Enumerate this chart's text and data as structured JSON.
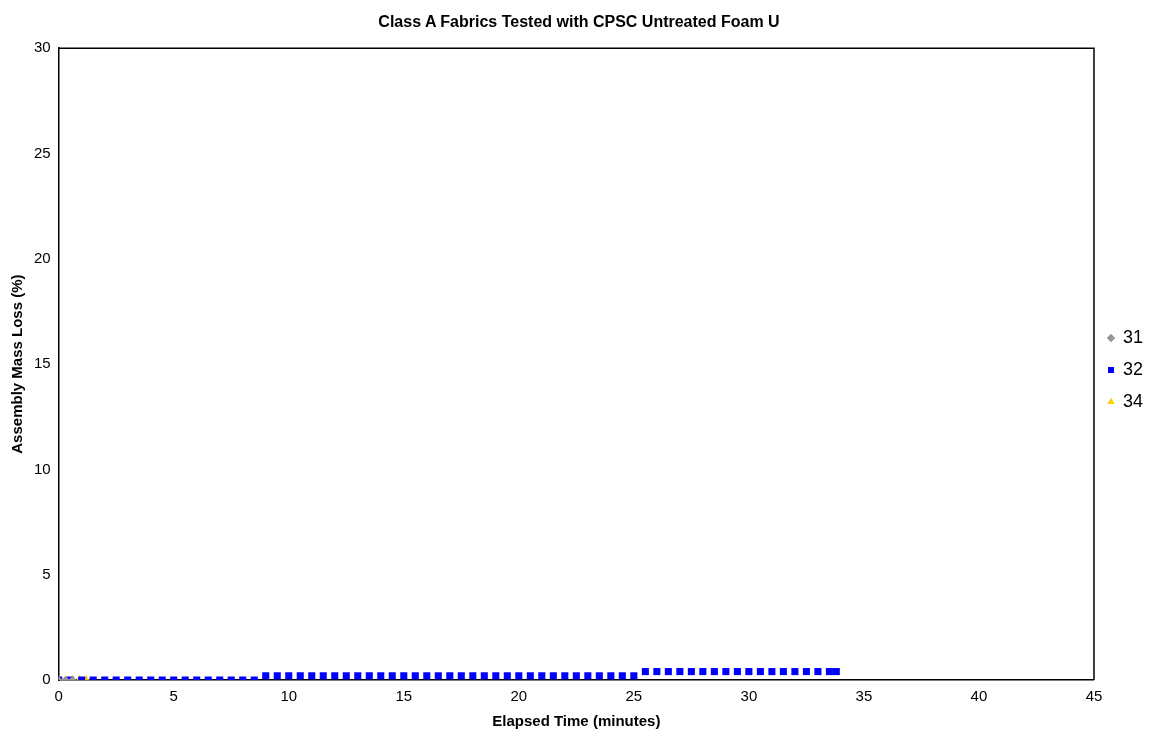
{
  "chart_data": {
    "type": "scatter",
    "title": "Class A Fabrics Tested with CPSC Untreated Foam U",
    "xlabel": "Elapsed Time (minutes)",
    "ylabel": "Assembly Mass Loss (%)",
    "xlim": [
      0,
      45
    ],
    "xticks": [
      0,
      5,
      10,
      15,
      20,
      25,
      30,
      35,
      40,
      45
    ],
    "ylim": [
      0,
      30
    ],
    "yticks": [
      0,
      5,
      10,
      15,
      20,
      25,
      30
    ],
    "grid": false,
    "legend": "right",
    "series": [
      {
        "name": "31",
        "color": "#969696",
        "marker": "diamond",
        "x": [
          0,
          0.3,
          0.6
        ],
        "values": [
          0,
          0,
          0
        ]
      },
      {
        "name": "32",
        "color": "#0000ff",
        "marker": "square",
        "x": [
          0,
          0.5,
          1,
          1.5,
          2,
          2.5,
          3,
          3.5,
          4,
          4.5,
          5,
          5.5,
          6,
          6.5,
          7,
          7.5,
          8,
          8.5,
          9,
          9.5,
          10,
          10.5,
          11,
          11.5,
          12,
          12.5,
          13,
          13.5,
          14,
          14.5,
          15,
          15.5,
          16,
          16.5,
          17,
          17.5,
          18,
          18.5,
          19,
          19.5,
          20,
          20.5,
          21,
          21.5,
          22,
          22.5,
          23,
          23.5,
          24,
          24.5,
          25,
          25.5,
          26,
          26.5,
          27,
          27.5,
          28,
          28.5,
          29,
          29.5,
          30,
          30.5,
          31,
          31.5,
          32,
          32.5,
          33,
          33.5,
          33.8
        ],
        "values": [
          0,
          0,
          0,
          0,
          0,
          0,
          0,
          0,
          0,
          0,
          0,
          0,
          0,
          0,
          0,
          0,
          0,
          0,
          0.2,
          0.2,
          0.2,
          0.2,
          0.2,
          0.2,
          0.2,
          0.2,
          0.2,
          0.2,
          0.2,
          0.2,
          0.2,
          0.2,
          0.2,
          0.2,
          0.2,
          0.2,
          0.2,
          0.2,
          0.2,
          0.2,
          0.2,
          0.2,
          0.2,
          0.2,
          0.2,
          0.2,
          0.2,
          0.2,
          0.2,
          0.2,
          0.2,
          0.4,
          0.4,
          0.4,
          0.4,
          0.4,
          0.4,
          0.4,
          0.4,
          0.4,
          0.4,
          0.4,
          0.4,
          0.4,
          0.4,
          0.4,
          0.4,
          0.4,
          0.4
        ]
      },
      {
        "name": "34",
        "color": "#ffcc00",
        "marker": "triangle",
        "x": [
          0,
          0.3,
          0.6,
          0.9,
          1.2
        ],
        "values": [
          0,
          0,
          0,
          0,
          0
        ]
      }
    ]
  }
}
